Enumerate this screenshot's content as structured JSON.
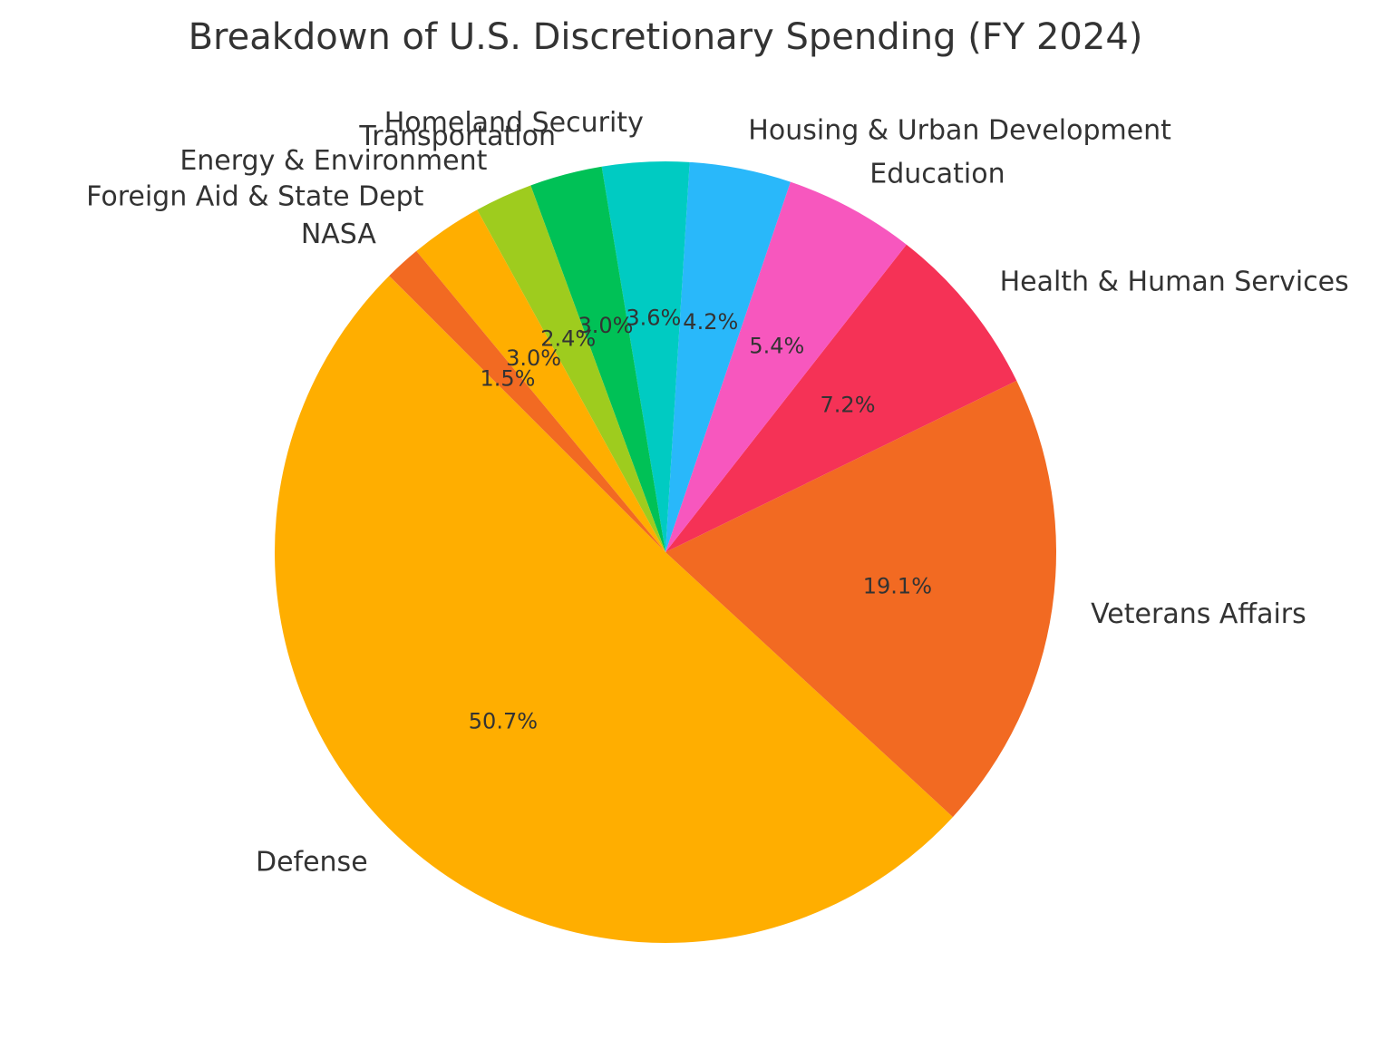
{
  "chart_data": {
    "type": "pie",
    "title": "Breakdown of U.S. Discretionary Spending (FY 2024)",
    "start_angle_deg": 135,
    "direction": "counterclockwise",
    "slices": [
      {
        "label": "Defense",
        "value": 50.7,
        "pct_label": "50.7%",
        "color": "#FFAE00"
      },
      {
        "label": "Veterans Affairs",
        "value": 19.1,
        "pct_label": "19.1%",
        "color": "#F26A22"
      },
      {
        "label": "Health & Human Services",
        "value": 7.2,
        "pct_label": "7.2%",
        "color": "#F53256"
      },
      {
        "label": "Education",
        "value": 5.4,
        "pct_label": "5.4%",
        "color": "#F757BE"
      },
      {
        "label": "Housing & Urban Development",
        "value": 4.2,
        "pct_label": "4.2%",
        "color": "#29B8FA"
      },
      {
        "label": "Homeland Security",
        "value": 3.6,
        "pct_label": "3.6%",
        "color": "#00CBC2"
      },
      {
        "label": "Transportation",
        "value": 3.0,
        "pct_label": "3.0%",
        "color": "#00C156"
      },
      {
        "label": "Energy & Environment",
        "value": 2.4,
        "pct_label": "2.4%",
        "color": "#9ECC1E"
      },
      {
        "label": "Foreign Aid & State Dept",
        "value": 3.0,
        "pct_label": "3.0%",
        "color": "#FFAE00"
      },
      {
        "label": "NASA",
        "value": 1.5,
        "pct_label": "1.5%",
        "color": "#F26A22"
      }
    ]
  }
}
